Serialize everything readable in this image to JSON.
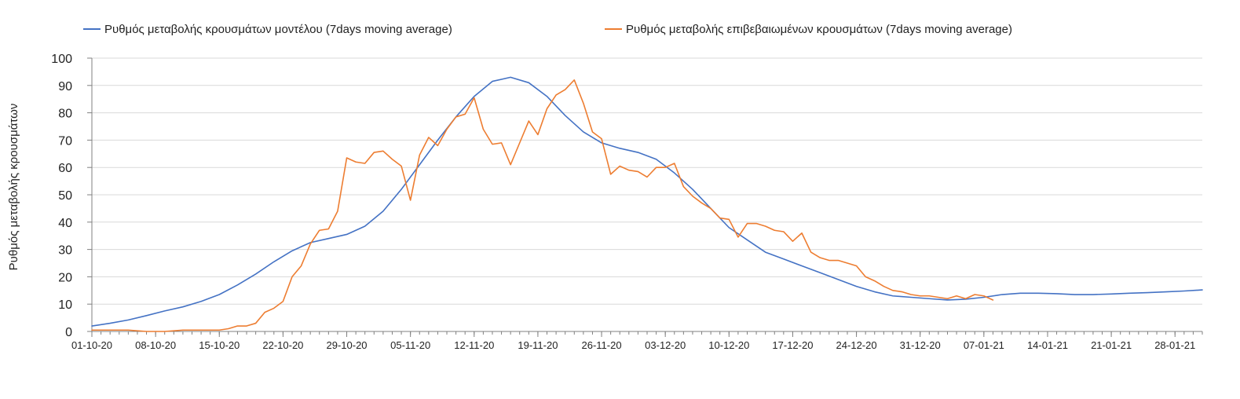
{
  "chart_data": {
    "type": "line",
    "title": "",
    "xlabel": "",
    "ylabel": "Ρυθμός μεταβολής κρουσμάτων",
    "ylim": [
      0,
      100
    ],
    "yticks": [
      0,
      10,
      20,
      30,
      40,
      50,
      60,
      70,
      80,
      90,
      100
    ],
    "xlim": [
      "01-10-20",
      "31-01-21"
    ],
    "xtick_labels": [
      "01-10-20",
      "08-10-20",
      "15-10-20",
      "22-10-20",
      "29-10-20",
      "05-11-20",
      "12-11-20",
      "19-11-20",
      "26-11-20",
      "03-12-20",
      "10-12-20",
      "17-12-20",
      "24-12-20",
      "31-12-20",
      "07-01-21",
      "14-01-21",
      "21-01-21",
      "28-01-21"
    ],
    "grid": true,
    "legend_position": "top",
    "colors": {
      "model": "#4472c4",
      "confirmed": "#ed7d31",
      "grid": "#d9d9d9",
      "axis": "#808080"
    },
    "series": [
      {
        "name": "Ρυθμός μεταβολής κρουσμάτων μοντέλου (7days moving average)",
        "x": [
          "01-10-20",
          "03-10-20",
          "05-10-20",
          "07-10-20",
          "09-10-20",
          "11-10-20",
          "13-10-20",
          "15-10-20",
          "17-10-20",
          "19-10-20",
          "21-10-20",
          "23-10-20",
          "25-10-20",
          "27-10-20",
          "29-10-20",
          "31-10-20",
          "02-11-20",
          "04-11-20",
          "06-11-20",
          "08-11-20",
          "10-11-20",
          "12-11-20",
          "14-11-20",
          "16-11-20",
          "18-11-20",
          "20-11-20",
          "22-11-20",
          "24-11-20",
          "26-11-20",
          "28-11-20",
          "30-11-20",
          "02-12-20",
          "04-12-20",
          "06-12-20",
          "08-12-20",
          "10-12-20",
          "12-12-20",
          "14-12-20",
          "16-12-20",
          "18-12-20",
          "20-12-20",
          "22-12-20",
          "24-12-20",
          "26-12-20",
          "28-12-20",
          "30-12-20",
          "01-01-21",
          "03-01-21",
          "05-01-21",
          "07-01-21",
          "09-01-21",
          "11-01-21",
          "13-01-21",
          "15-01-21",
          "17-01-21",
          "19-01-21",
          "21-01-21",
          "23-01-21",
          "25-01-21",
          "27-01-21",
          "29-01-21",
          "31-01-21"
        ],
        "y": [
          2,
          3,
          4.2,
          5.8,
          7.5,
          9,
          11,
          13.5,
          17,
          21,
          25.5,
          29.5,
          32.5,
          34,
          35.5,
          38.5,
          44,
          52,
          61,
          70,
          78.5,
          86,
          91.5,
          93,
          91,
          86,
          79,
          73,
          69,
          67,
          65.5,
          63,
          58,
          52,
          45,
          38,
          33.5,
          29,
          26.5,
          24,
          21.5,
          19,
          16.5,
          14.5,
          13,
          12.5,
          12,
          11.5,
          11.8,
          12.5,
          13.5,
          14,
          14,
          13.8,
          13.5,
          13.5,
          13.7,
          14,
          14.2,
          14.5,
          14.8,
          15.2
        ]
      },
      {
        "name": "Ρυθμός μεταβολής επιβεβαιωμένων κρουσμάτων (7days moving average)",
        "x": [
          "01-10-20",
          "03-10-20",
          "05-10-20",
          "07-10-20",
          "09-10-20",
          "11-10-20",
          "13-10-20",
          "15-10-20",
          "16-10-20",
          "17-10-20",
          "18-10-20",
          "19-10-20",
          "20-10-20",
          "21-10-20",
          "22-10-20",
          "23-10-20",
          "24-10-20",
          "25-10-20",
          "26-10-20",
          "27-10-20",
          "28-10-20",
          "29-10-20",
          "30-10-20",
          "31-10-20",
          "01-11-20",
          "02-11-20",
          "03-11-20",
          "04-11-20",
          "05-11-20",
          "06-11-20",
          "07-11-20",
          "08-11-20",
          "09-11-20",
          "10-11-20",
          "11-11-20",
          "12-11-20",
          "13-11-20",
          "14-11-20",
          "15-11-20",
          "16-11-20",
          "17-11-20",
          "18-11-20",
          "19-11-20",
          "20-11-20",
          "21-11-20",
          "22-11-20",
          "23-11-20",
          "24-11-20",
          "25-11-20",
          "26-11-20",
          "27-11-20",
          "28-11-20",
          "29-11-20",
          "30-11-20",
          "01-12-20",
          "02-12-20",
          "03-12-20",
          "04-12-20",
          "05-12-20",
          "06-12-20",
          "07-12-20",
          "08-12-20",
          "09-12-20",
          "10-12-20",
          "11-12-20",
          "12-12-20",
          "13-12-20",
          "14-12-20",
          "15-12-20",
          "16-12-20",
          "17-12-20",
          "18-12-20",
          "19-12-20",
          "20-12-20",
          "21-12-20",
          "22-12-20",
          "23-12-20",
          "24-12-20",
          "25-12-20",
          "26-12-20",
          "27-12-20",
          "28-12-20",
          "29-12-20",
          "30-12-20",
          "31-12-20",
          "01-01-21",
          "02-01-21",
          "03-01-21",
          "04-01-21",
          "05-01-21",
          "06-01-21",
          "07-01-21",
          "08-01-21"
        ],
        "y": [
          0.5,
          0.5,
          0.5,
          0,
          0,
          0.5,
          0.5,
          0.5,
          1,
          2,
          2,
          3,
          7,
          8.5,
          11,
          20,
          24,
          32,
          37,
          37.5,
          44,
          63.5,
          62,
          61.5,
          65.5,
          66,
          63,
          60.5,
          48,
          64.5,
          71,
          68,
          74,
          78.5,
          79.5,
          85.5,
          74,
          68.5,
          69,
          61,
          69,
          77,
          72,
          81.5,
          86.5,
          88.5,
          92,
          83.5,
          73,
          70.5,
          57.5,
          60.5,
          59,
          58.5,
          56.5,
          60,
          60,
          61.5,
          53,
          49.5,
          47,
          45,
          41.5,
          41,
          34.5,
          39.5,
          39.5,
          38.5,
          37,
          36.5,
          33,
          36,
          29,
          27,
          26,
          26,
          25,
          24,
          20,
          18.5,
          16.5,
          15,
          14.5,
          13.5,
          13,
          13,
          12.5,
          12,
          13,
          12,
          13.5,
          13,
          11.5
        ]
      }
    ]
  }
}
